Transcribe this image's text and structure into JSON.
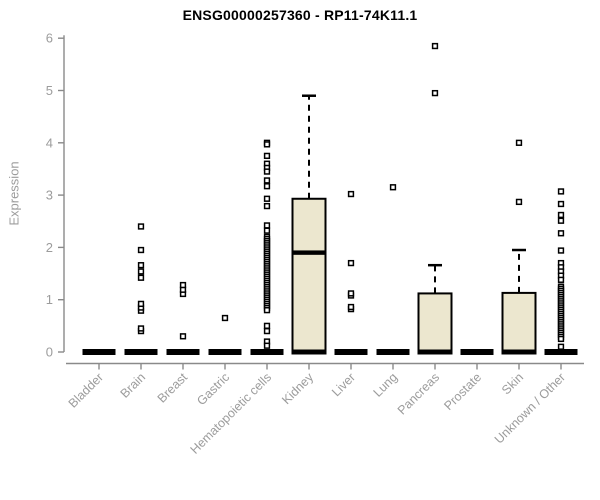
{
  "chart_data": {
    "type": "boxplot",
    "title": "ENSG00000257360 - RP11-74K11.1",
    "xlabel": "",
    "ylabel": "Expression",
    "ylim": [
      0,
      6
    ],
    "yticks": [
      0,
      1,
      2,
      3,
      4,
      5,
      6
    ],
    "grid": false,
    "legend": null,
    "colors": {
      "box_fill": "#ece7cf",
      "box_stroke": "#000000",
      "median": "#000000",
      "outlier_fill": "#ffffff",
      "axis": "#8a8a8a",
      "tick_label": "#9c9c9c",
      "title": "#000000",
      "background": "#ffffff"
    },
    "categories": [
      "Bladder",
      "Brain",
      "Breast",
      "Gastric",
      "Hematopoietic cells",
      "Kidney",
      "Liver",
      "Lung",
      "Pancreas",
      "Prostate",
      "Skin",
      "Unknown / Other"
    ],
    "series": [
      {
        "label": "Bladder",
        "q1": 0,
        "median": 0,
        "q3": 0,
        "whisker_low": 0,
        "whisker_high": 0,
        "outliers": []
      },
      {
        "label": "Brain",
        "q1": 0,
        "median": 0,
        "q3": 0,
        "whisker_low": 0,
        "whisker_high": 0,
        "outliers": [
          0.4,
          0.45,
          0.79,
          0.85,
          0.92,
          1.42,
          1.54,
          1.66,
          1.95,
          2.4
        ]
      },
      {
        "label": "Breast",
        "q1": 0,
        "median": 0,
        "q3": 0,
        "whisker_low": 0,
        "whisker_high": 0,
        "outliers": [
          0.3,
          1.11,
          1.19,
          1.28
        ]
      },
      {
        "label": "Gastric",
        "q1": 0,
        "median": 0,
        "q3": 0,
        "whisker_low": 0,
        "whisker_high": 0,
        "outliers": [
          0.65
        ]
      },
      {
        "label": "Hematopoietic cells",
        "q1": 0,
        "median": 0,
        "q3": 0,
        "whisker_low": 0,
        "whisker_high": 0,
        "outliers": [
          4.0,
          3.97,
          3.75,
          3.6,
          3.52,
          3.45,
          3.28,
          3.17,
          2.93,
          2.79,
          2.42,
          2.32,
          2.2,
          2.16,
          2.12,
          2.08,
          2.04,
          2.0,
          1.96,
          1.92,
          1.88,
          1.84,
          1.8,
          1.76,
          1.72,
          1.68,
          1.64,
          1.6,
          1.56,
          1.52,
          1.48,
          1.44,
          1.4,
          1.36,
          1.32,
          1.28,
          1.24,
          1.2,
          1.16,
          1.12,
          1.08,
          1.04,
          1.0,
          0.96,
          0.92,
          0.88,
          0.84,
          0.8,
          0.5,
          0.4,
          0.2,
          0.12
        ]
      },
      {
        "label": "Kidney",
        "q1": 0,
        "median": 1.9,
        "q3": 2.93,
        "whisker_low": 0,
        "whisker_high": 4.9,
        "outliers": []
      },
      {
        "label": "Liver",
        "q1": 0,
        "median": 0,
        "q3": 0,
        "whisker_low": 0,
        "whisker_high": 0,
        "outliers": [
          0.82,
          0.86,
          1.08,
          1.12,
          1.7,
          3.02
        ]
      },
      {
        "label": "Lung",
        "q1": 0,
        "median": 0,
        "q3": 0,
        "whisker_low": 0,
        "whisker_high": 0,
        "outliers": [
          3.15
        ]
      },
      {
        "label": "Pancreas",
        "q1": 0,
        "median": 0,
        "q3": 1.12,
        "whisker_low": 0,
        "whisker_high": 1.66,
        "outliers": [
          4.95,
          5.85
        ]
      },
      {
        "label": "Prostate",
        "q1": 0,
        "median": 0,
        "q3": 0,
        "whisker_low": 0,
        "whisker_high": 0,
        "outliers": []
      },
      {
        "label": "Skin",
        "q1": 0,
        "median": 0,
        "q3": 1.13,
        "whisker_low": 0,
        "whisker_high": 1.95,
        "outliers": [
          2.87,
          4.0
        ]
      },
      {
        "label": "Unknown / Other",
        "q1": 0,
        "median": 0,
        "q3": 0,
        "whisker_low": 0,
        "whisker_high": 0,
        "outliers": [
          3.07,
          2.83,
          2.62,
          2.51,
          2.27,
          1.94,
          1.7,
          1.62,
          1.54,
          1.46,
          1.38,
          1.25,
          1.21,
          1.17,
          1.13,
          1.09,
          1.05,
          1.01,
          0.97,
          0.93,
          0.89,
          0.85,
          0.81,
          0.77,
          0.73,
          0.69,
          0.65,
          0.61,
          0.57,
          0.53,
          0.49,
          0.45,
          0.41,
          0.37,
          0.33,
          0.29,
          0.25,
          0.1
        ]
      }
    ]
  }
}
